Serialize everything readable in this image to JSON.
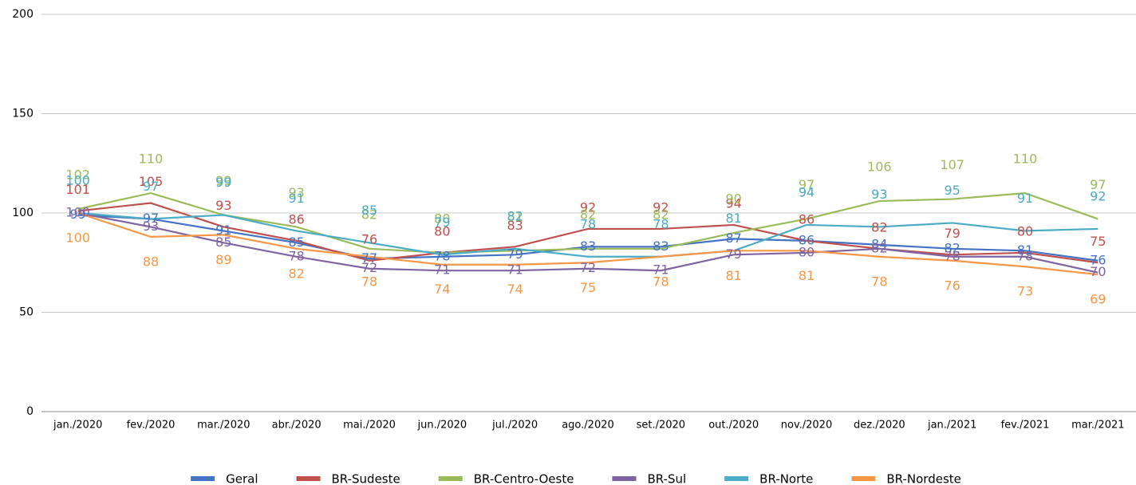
{
  "chart_data": {
    "type": "line",
    "categories": [
      "jan./2020",
      "fev./2020",
      "mar./2020",
      "abr./2020",
      "mai./2020",
      "jun./2020",
      "jul./2020",
      "ago./2020",
      "set./2020",
      "out./2020",
      "nov./2020",
      "dez./2020",
      "jan./2021",
      "fev./2021",
      "mar./2021"
    ],
    "series": [
      {
        "name": "Geral",
        "color": "#4472c4",
        "values": [
          99,
          97,
          91,
          85,
          77,
          78,
          79,
          83,
          83,
          87,
          86,
          84,
          82,
          81,
          76
        ]
      },
      {
        "name": "BR-Sudeste",
        "color": "#c0504d",
        "values": [
          101,
          105,
          93,
          86,
          76,
          80,
          83,
          92,
          92,
          94,
          86,
          82,
          79,
          80,
          75
        ]
      },
      {
        "name": "BR-Centro-Oeste",
        "color": "#9bbb59",
        "values": [
          102,
          110,
          99,
          93,
          82,
          80,
          81,
          82,
          82,
          90,
          97,
          106,
          107,
          110,
          97
        ]
      },
      {
        "name": "BR-Sul",
        "color": "#8064a2",
        "values": [
          100,
          93,
          85,
          78,
          72,
          71,
          71,
          72,
          71,
          79,
          80,
          82,
          78,
          78,
          70
        ]
      },
      {
        "name": "BR-Norte",
        "color": "#4bacc6",
        "values": [
          100,
          97,
          99,
          91,
          85,
          79,
          82,
          78,
          78,
          81,
          94,
          93,
          95,
          91,
          92
        ]
      },
      {
        "name": "BR-Nordeste",
        "color": "#f79646",
        "values": [
          100,
          88,
          89,
          82,
          78,
          74,
          74,
          75,
          78,
          81,
          81,
          78,
          76,
          73,
          69
        ]
      }
    ],
    "ylim": [
      0,
      200
    ],
    "yticks": [
      0,
      50,
      100,
      150,
      200
    ],
    "grid": true,
    "legend": "bottom"
  }
}
